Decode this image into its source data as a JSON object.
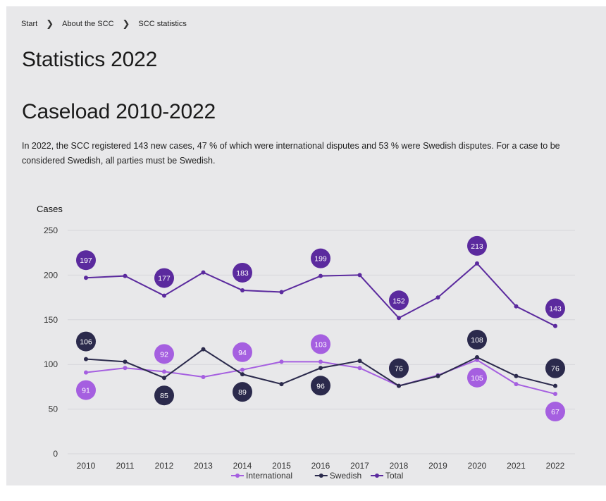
{
  "breadcrumb": {
    "items": [
      "Start",
      "About the SCC",
      "SCC statistics"
    ],
    "separator": "❯"
  },
  "page_title": "Statistics 2022",
  "section_title": "Caseload 2010-2022",
  "intro_text": "In 2022, the SCC registered 143 new cases, 47 % of which were international disputes and 53 % were Swedish disputes. For a case to be considered Swedish, all parties must be Swedish.",
  "chart_data": {
    "type": "line",
    "title": "",
    "ylabel": "Cases",
    "xlabel": "",
    "ylim": [
      0,
      250
    ],
    "yticks": [
      0,
      50,
      100,
      150,
      200,
      250
    ],
    "grid": true,
    "legend_position": "bottom",
    "categories": [
      "2010",
      "2011",
      "2012",
      "2013",
      "2014",
      "2015",
      "2016",
      "2017",
      "2018",
      "2019",
      "2020",
      "2021",
      "2022"
    ],
    "series": [
      {
        "name": "International",
        "color": "#a55fe0",
        "values": [
          91,
          96,
          92,
          86,
          94,
          103,
          103,
          96,
          76,
          88,
          105,
          78,
          67
        ],
        "labels": {
          "2010": 91,
          "2012": 92,
          "2014": 94,
          "2016": 103,
          "2018": 76,
          "2020": 105,
          "2022": 67
        }
      },
      {
        "name": "Swedish",
        "color": "#2b2a4c",
        "values": [
          106,
          103,
          85,
          117,
          89,
          78,
          96,
          104,
          76,
          87,
          108,
          87,
          76
        ],
        "labels": {
          "2010": 106,
          "2012": 85,
          "2014": 89,
          "2016": 96,
          "2018": 76,
          "2020": 108,
          "2022": 76
        }
      },
      {
        "name": "Total",
        "color": "#5b2a9e",
        "values": [
          197,
          199,
          177,
          203,
          183,
          181,
          199,
          200,
          152,
          175,
          213,
          165,
          143
        ],
        "labels": {
          "2010": 197,
          "2012": 177,
          "2014": 183,
          "2016": 199,
          "2018": 152,
          "2020": 213,
          "2022": 143
        }
      }
    ]
  }
}
